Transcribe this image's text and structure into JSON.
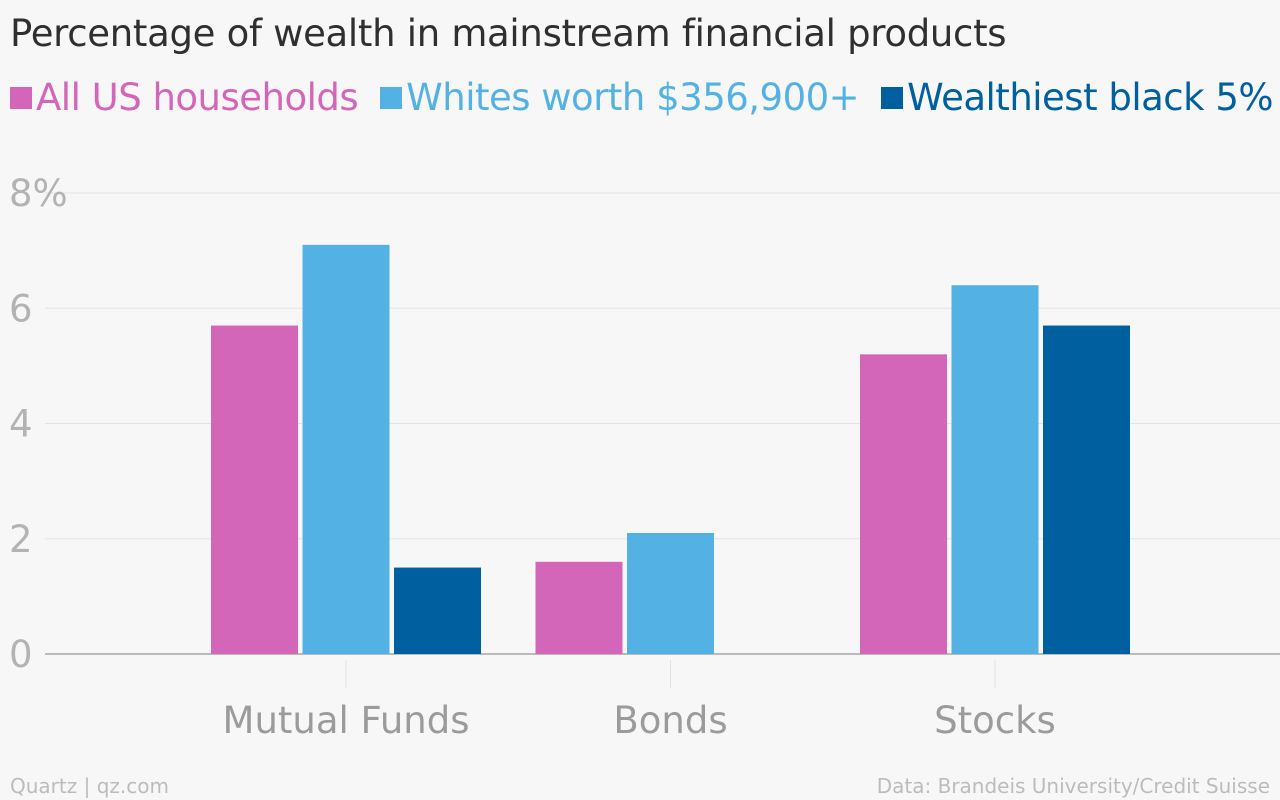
{
  "title": "Percentage of wealth in mainstream financial products",
  "legend": [
    {
      "label": "All US households",
      "color": "#d466b9"
    },
    {
      "label": "Whites worth $356,900+",
      "color": "#53b1e3"
    },
    {
      "label": "Wealthiest black 5%",
      "color": "#005f9f"
    }
  ],
  "footer": {
    "source_left": "Quartz | qz.com",
    "source_right": "Data: Brandeis University/Credit Suisse"
  },
  "chart_data": {
    "type": "bar",
    "categories": [
      "Mutual Funds",
      "Bonds",
      "Stocks"
    ],
    "series": [
      {
        "name": "All US households",
        "values": [
          5.7,
          1.6,
          5.2
        ],
        "color": "#d466b9"
      },
      {
        "name": "Whites worth $356,900+",
        "values": [
          7.1,
          2.1,
          6.4
        ],
        "color": "#53b1e3"
      },
      {
        "name": "Wealthiest black 5%",
        "values": [
          1.5,
          0,
          5.7
        ],
        "color": "#005f9f"
      }
    ],
    "yticks": [
      "0",
      "2",
      "4",
      "6",
      "8%"
    ],
    "ylim": [
      0,
      8
    ],
    "grid": true,
    "legend_position": "top"
  }
}
